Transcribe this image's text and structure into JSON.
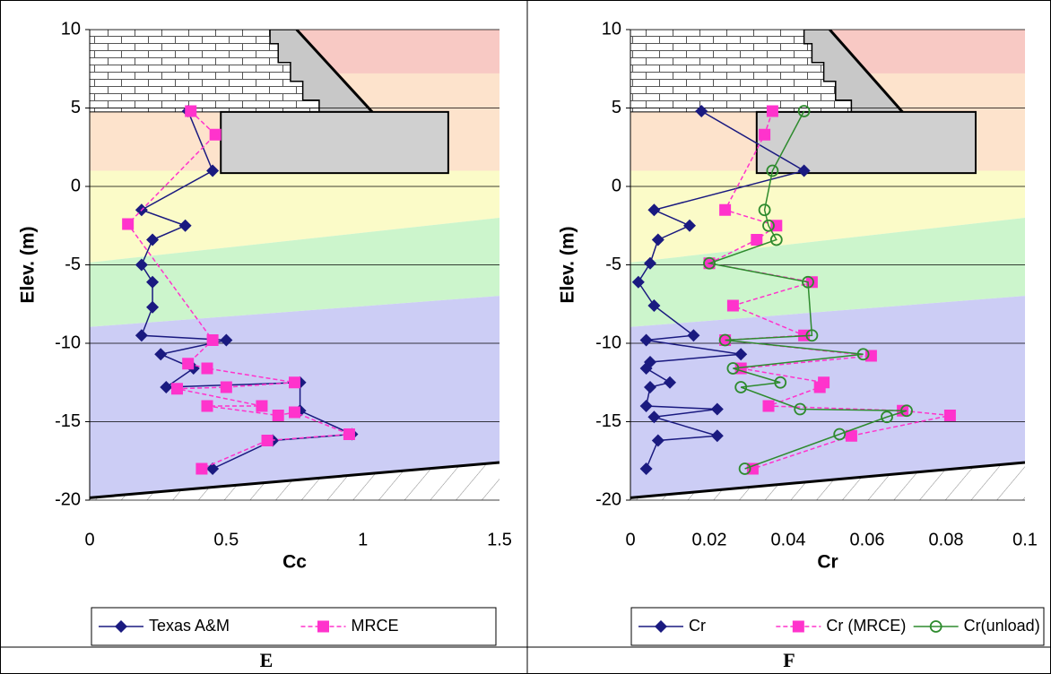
{
  "chart_data": [
    {
      "type": "line",
      "label": "E",
      "x_label": "Cc",
      "y_label": "Elev. (m)",
      "xlim": [
        0,
        1.5
      ],
      "xticks": [
        0,
        0.5,
        1,
        1.5
      ],
      "ylim": [
        -20,
        10
      ],
      "yticks": [
        10,
        5,
        0,
        -5,
        -10,
        -15,
        -20
      ],
      "grid": true,
      "series": [
        {
          "name": "Texas A&M",
          "color": "#1a1a80",
          "marker": "diamond",
          "dash": false,
          "x": [
            0.36,
            0.45,
            0.19,
            0.35,
            0.23,
            0.19,
            0.23,
            0.23,
            0.19,
            0.5,
            0.26,
            0.38,
            0.28,
            0.77,
            0.77,
            0.96,
            0.67,
            0.45
          ],
          "values": [
            4.8,
            1,
            -1.5,
            -2.5,
            -3.4,
            -5,
            -6.1,
            -7.7,
            -9.5,
            -9.8,
            -10.7,
            -11.6,
            -12.8,
            -12.5,
            -14.3,
            -15.8,
            -16.2,
            -18
          ]
        },
        {
          "name": "MRCE",
          "color": "#ff33cc",
          "marker": "square",
          "dash": true,
          "x": [
            0.37,
            0.46,
            0.14,
            0.45,
            0.36,
            0.43,
            0.75,
            0.5,
            0.32,
            0.63,
            0.43,
            0.69,
            0.75,
            0.95,
            0.65,
            0.41
          ],
          "values": [
            4.8,
            3.3,
            -2.4,
            -9.8,
            -11.3,
            -11.6,
            -12.5,
            -12.8,
            -12.9,
            -14,
            -14,
            -14.6,
            -14.4,
            -15.8,
            -16.2,
            -18
          ]
        }
      ]
    },
    {
      "type": "line",
      "label": "F",
      "x_label": "Cr",
      "y_label": "Elev. (m)",
      "xlim": [
        0,
        0.1
      ],
      "xticks": [
        0,
        0.02,
        0.04,
        0.06,
        0.08,
        0.1
      ],
      "ylim": [
        -20,
        10
      ],
      "yticks": [
        10,
        5,
        0,
        -5,
        -10,
        -15,
        -20
      ],
      "grid": true,
      "series": [
        {
          "name": "Cr",
          "color": "#1a1a80",
          "marker": "diamond",
          "dash": false,
          "x": [
            0.018,
            0.044,
            0.006,
            0.015,
            0.007,
            0.005,
            0.002,
            0.006,
            0.016,
            0.004,
            0.028,
            0.005,
            0.004,
            0.01,
            0.005,
            0.004,
            0.022,
            0.006,
            0.022,
            0.007,
            0.004
          ],
          "values": [
            4.8,
            1,
            -1.5,
            -2.5,
            -3.4,
            -4.9,
            -6.1,
            -7.6,
            -9.5,
            -9.8,
            -10.7,
            -11.2,
            -11.6,
            -12.5,
            -12.8,
            -14,
            -14.2,
            -14.7,
            -15.9,
            -16.2,
            -18
          ]
        },
        {
          "name": "Cr (MRCE)",
          "color": "#ff33cc",
          "marker": "square",
          "dash": true,
          "x": [
            0.036,
            0.034,
            0.024,
            0.037,
            0.032,
            0.02,
            0.046,
            0.026,
            0.044,
            0.024,
            0.061,
            0.028,
            0.049,
            0.048,
            0.035,
            0.069,
            0.081,
            0.056,
            0.031
          ],
          "values": [
            4.8,
            3.3,
            -1.5,
            -2.5,
            -3.4,
            -4.9,
            -6.1,
            -7.6,
            -9.5,
            -9.8,
            -10.8,
            -11.6,
            -12.5,
            -12.8,
            -14,
            -14.3,
            -14.6,
            -15.9,
            -18
          ]
        },
        {
          "name": "Cr(unload)",
          "color": "#2e8b2e",
          "marker": "circle",
          "dash": false,
          "x": [
            0.044,
            0.036,
            0.034,
            0.035,
            0.037,
            0.02,
            0.045,
            0.046,
            0.024,
            0.059,
            0.026,
            0.038,
            0.028,
            0.043,
            0.07,
            0.065,
            0.053,
            0.029
          ],
          "values": [
            4.8,
            1,
            -1.5,
            -2.5,
            -3.4,
            -4.9,
            -6.1,
            -9.5,
            -9.8,
            -10.7,
            -11.6,
            -12.5,
            -12.8,
            -14.2,
            -14.3,
            -14.7,
            -15.8,
            -18
          ]
        }
      ]
    }
  ]
}
